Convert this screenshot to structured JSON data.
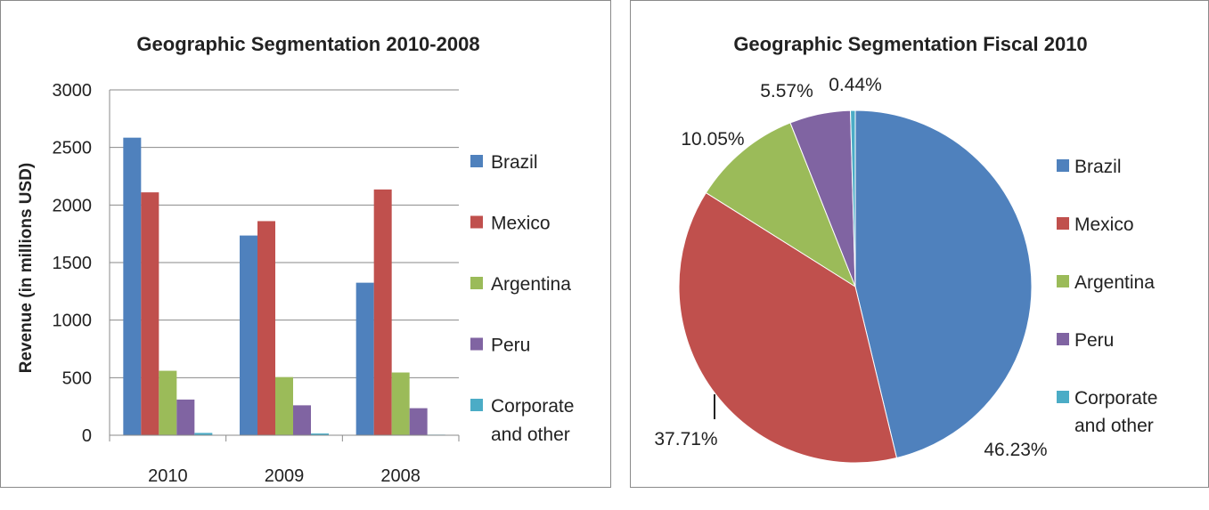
{
  "chart_data": [
    {
      "type": "bar",
      "title": "Geographic Segmentation 2010-2008",
      "xlabel": "",
      "ylabel": "Revenue (in millions USD)",
      "ylim": [
        0,
        3000
      ],
      "yticks": [
        "0",
        "500",
        "1000",
        "1500",
        "2000",
        "2500",
        "3000"
      ],
      "categories": [
        "2010",
        "2009",
        "2008"
      ],
      "series": [
        {
          "name": "Brazil",
          "values": [
            2585,
            1735,
            1325
          ],
          "color": "#4F81BD"
        },
        {
          "name": "Mexico",
          "values": [
            2110,
            1860,
            2135
          ],
          "color": "#C0504D"
        },
        {
          "name": "Argentina",
          "values": [
            560,
            505,
            545
          ],
          "color": "#9BBB59"
        },
        {
          "name": "Peru",
          "values": [
            310,
            260,
            235
          ],
          "color": "#8064A2"
        },
        {
          "name": "Corporate and other",
          "values": [
            20,
            15,
            5
          ],
          "color": "#4BACC6"
        }
      ],
      "grid": true,
      "legend": "right"
    },
    {
      "type": "pie",
      "title": "Geographic Segmentation Fiscal 2010",
      "slices": [
        {
          "name": "Brazil",
          "value": 46.23,
          "label": "46.23%",
          "color": "#4F81BD"
        },
        {
          "name": "Mexico",
          "value": 37.71,
          "label": "37.71%",
          "color": "#C0504D"
        },
        {
          "name": "Argentina",
          "value": 10.05,
          "label": "10.05%",
          "color": "#9BBB59"
        },
        {
          "name": "Peru",
          "value": 5.57,
          "label": "5.57%",
          "color": "#8064A2"
        },
        {
          "name": "Corporate and other",
          "value": 0.44,
          "label": "0.44%",
          "color": "#4BACC6"
        }
      ],
      "legend": "right"
    }
  ]
}
